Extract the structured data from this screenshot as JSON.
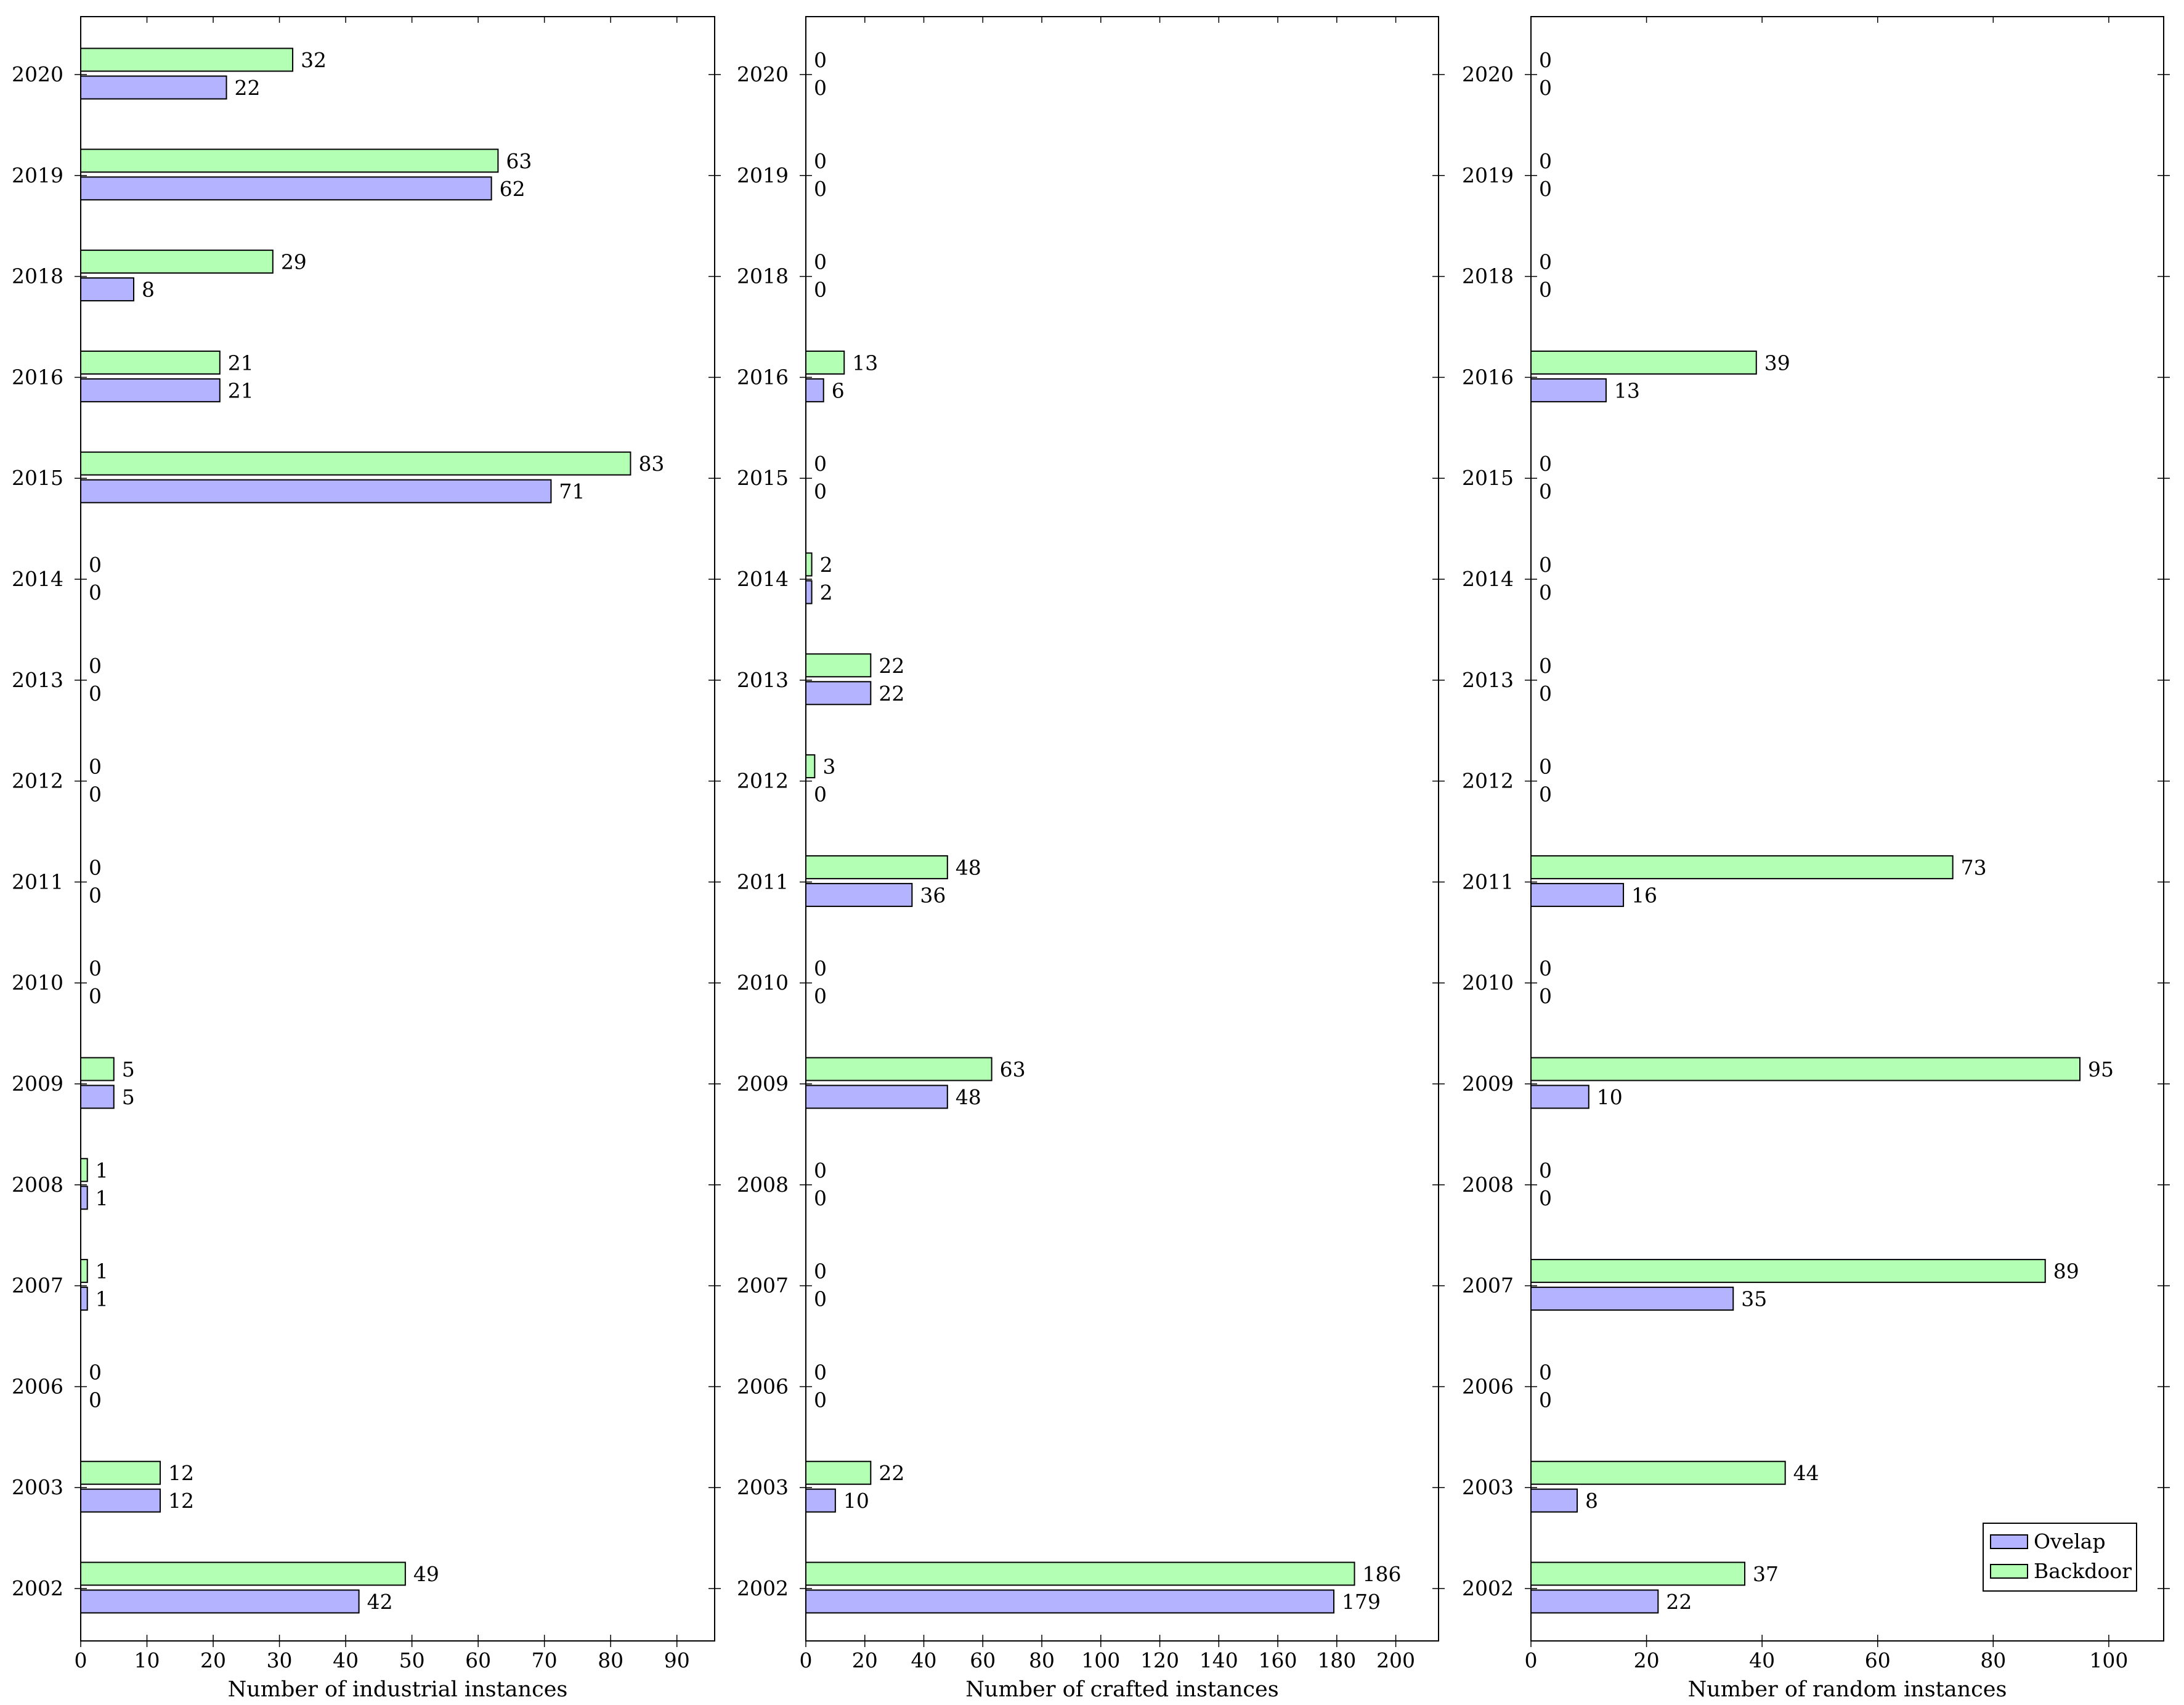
{
  "chart_data": [
    {
      "type": "bar",
      "orientation": "horizontal",
      "categories": [
        "2002",
        "2003",
        "2006",
        "2007",
        "2008",
        "2009",
        "2010",
        "2011",
        "2012",
        "2013",
        "2014",
        "2015",
        "2016",
        "2018",
        "2019",
        "2020"
      ],
      "series": [
        {
          "name": "Ovelap",
          "color": "#b3b3ff",
          "values": [
            42,
            12,
            0,
            1,
            1,
            5,
            0,
            0,
            0,
            0,
            0,
            71,
            21,
            8,
            62,
            22
          ]
        },
        {
          "name": "Backdoor",
          "color": "#b3ffb3",
          "values": [
            49,
            12,
            0,
            1,
            1,
            5,
            0,
            0,
            0,
            0,
            0,
            83,
            21,
            29,
            63,
            32
          ]
        }
      ],
      "xlabel": "Number of industrial instances",
      "ylabel": "",
      "xlim": [
        0,
        95.7
      ],
      "xticks": [
        0,
        10,
        20,
        30,
        40,
        50,
        60,
        70,
        80,
        90
      ],
      "legend": null
    },
    {
      "type": "bar",
      "orientation": "horizontal",
      "categories": [
        "2002",
        "2003",
        "2006",
        "2007",
        "2008",
        "2009",
        "2010",
        "2011",
        "2012",
        "2013",
        "2014",
        "2015",
        "2016",
        "2018",
        "2019",
        "2020"
      ],
      "series": [
        {
          "name": "Ovelap",
          "color": "#b3b3ff",
          "values": [
            179,
            10,
            0,
            0,
            0,
            48,
            0,
            36,
            0,
            22,
            2,
            0,
            6,
            0,
            0,
            0
          ]
        },
        {
          "name": "Backdoor",
          "color": "#b3ffb3",
          "values": [
            186,
            22,
            0,
            0,
            0,
            63,
            0,
            48,
            3,
            22,
            2,
            0,
            13,
            0,
            0,
            0
          ]
        }
      ],
      "xlabel": "Number of crafted instances",
      "ylabel": "",
      "xlim": [
        0,
        214.5
      ],
      "xticks": [
        0,
        20,
        40,
        60,
        80,
        100,
        120,
        140,
        160,
        180,
        200
      ],
      "legend": null
    },
    {
      "type": "bar",
      "orientation": "horizontal",
      "categories": [
        "2002",
        "2003",
        "2006",
        "2007",
        "2008",
        "2009",
        "2010",
        "2011",
        "2012",
        "2013",
        "2014",
        "2015",
        "2016",
        "2018",
        "2019",
        "2020"
      ],
      "series": [
        {
          "name": "Ovelap",
          "color": "#b3b3ff",
          "values": [
            22,
            8,
            0,
            35,
            0,
            10,
            0,
            16,
            0,
            0,
            0,
            0,
            13,
            0,
            0,
            0
          ]
        },
        {
          "name": "Backdoor",
          "color": "#b3ffb3",
          "values": [
            37,
            44,
            0,
            89,
            0,
            95,
            0,
            73,
            0,
            0,
            0,
            0,
            39,
            0,
            0,
            0
          ]
        }
      ],
      "xlabel": "Number of random instances",
      "ylabel": "",
      "xlim": [
        0,
        109.5
      ],
      "xticks": [
        0,
        20,
        40,
        60,
        80,
        100
      ],
      "legend": "bottom-right"
    }
  ]
}
